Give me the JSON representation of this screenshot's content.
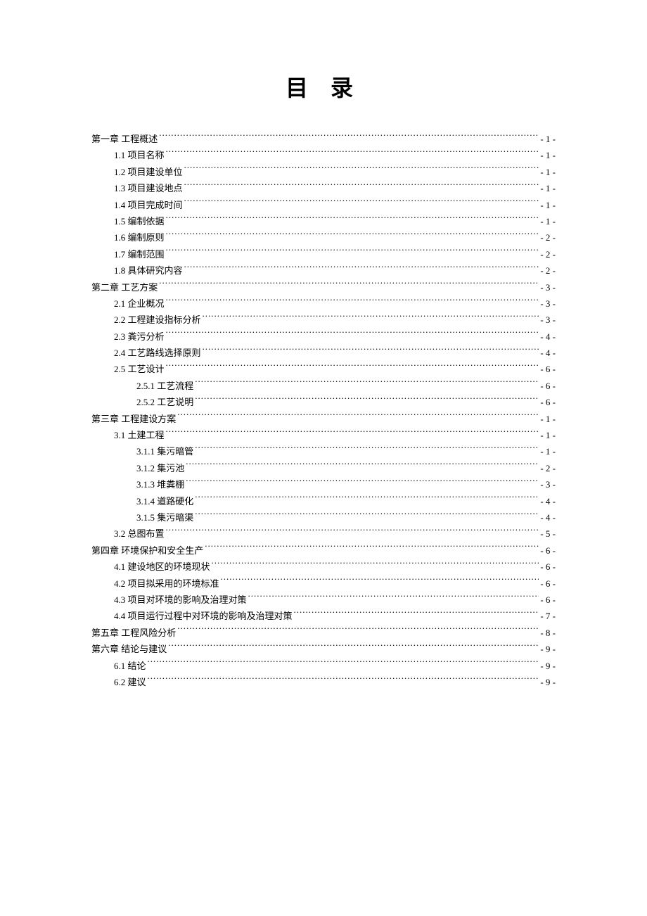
{
  "title": "目 录",
  "entries": [
    {
      "level": 0,
      "text": "第一章 工程概述",
      "page": "- 1 -"
    },
    {
      "level": 1,
      "text": "1.1 项目名称",
      "page": "- 1 -"
    },
    {
      "level": 1,
      "text": "1.2 项目建设单位",
      "page": "- 1 -"
    },
    {
      "level": 1,
      "text": "1.3 项目建设地点",
      "page": "- 1 -"
    },
    {
      "level": 1,
      "text": "1.4 项目完成时间",
      "page": "- 1 -"
    },
    {
      "level": 1,
      "text": "1.5 编制依据",
      "page": "- 1 -"
    },
    {
      "level": 1,
      "text": "1.6 编制原则",
      "page": "- 2 -"
    },
    {
      "level": 1,
      "text": "1.7 编制范围",
      "page": "- 2 -"
    },
    {
      "level": 1,
      "text": "1.8 具体研究内容",
      "page": "- 2 -"
    },
    {
      "level": 0,
      "text": "第二章 工艺方案",
      "page": "- 3 -"
    },
    {
      "level": 1,
      "text": "2.1 企业概况",
      "page": "- 3 -"
    },
    {
      "level": 1,
      "text": "2.2 工程建设指标分析",
      "page": "- 3 -"
    },
    {
      "level": 1,
      "text": "2.3 粪污分析",
      "page": "- 4 -"
    },
    {
      "level": 1,
      "text": "2.4 工艺路线选择原则",
      "page": "- 4 -"
    },
    {
      "level": 1,
      "text": "2.5 工艺设计",
      "page": "- 6 -"
    },
    {
      "level": 2,
      "text": "2.5.1 工艺流程",
      "page": "- 6 -"
    },
    {
      "level": 2,
      "text": "2.5.2 工艺说明",
      "page": "- 6 -"
    },
    {
      "level": 0,
      "text": "第三章 工程建设方案",
      "page": "- 1 -"
    },
    {
      "level": 1,
      "text": "3.1 土建工程",
      "page": "- 1 -"
    },
    {
      "level": 2,
      "text": "3.1.1 集污暗管",
      "page": "- 1 -"
    },
    {
      "level": 2,
      "text": "3.1.2 集污池",
      "page": "- 2 -"
    },
    {
      "level": 2,
      "text": "3.1.3 堆粪棚",
      "page": "- 3 -"
    },
    {
      "level": 2,
      "text": "3.1.4 道路硬化",
      "page": "- 4 -"
    },
    {
      "level": 2,
      "text": "3.1.5 集污暗渠",
      "page": "- 4 -"
    },
    {
      "level": 1,
      "text": "3.2 总图布置",
      "page": "- 5 -"
    },
    {
      "level": 0,
      "text": "第四章 环境保护和安全生产",
      "page": "- 6 -"
    },
    {
      "level": 1,
      "text": "4.1 建设地区的环境现状",
      "page": "- 6 -"
    },
    {
      "level": 1,
      "text": "4.2 项目拟采用的环境标准",
      "page": "- 6 -"
    },
    {
      "level": 1,
      "text": "4.3 项目对环境的影响及治理对策",
      "page": "- 6 -"
    },
    {
      "level": 1,
      "text": "4.4 项目运行过程中对环境的影响及治理对策",
      "page": "- 7 -"
    },
    {
      "level": 0,
      "text": "第五章 工程风险分析",
      "page": "- 8 -"
    },
    {
      "level": 0,
      "text": "第六章 结论与建议",
      "page": "- 9 -"
    },
    {
      "level": 1,
      "text": "6.1 结论",
      "page": "- 9 -"
    },
    {
      "level": 1,
      "text": "6.2 建议",
      "page": "- 9 -"
    }
  ]
}
